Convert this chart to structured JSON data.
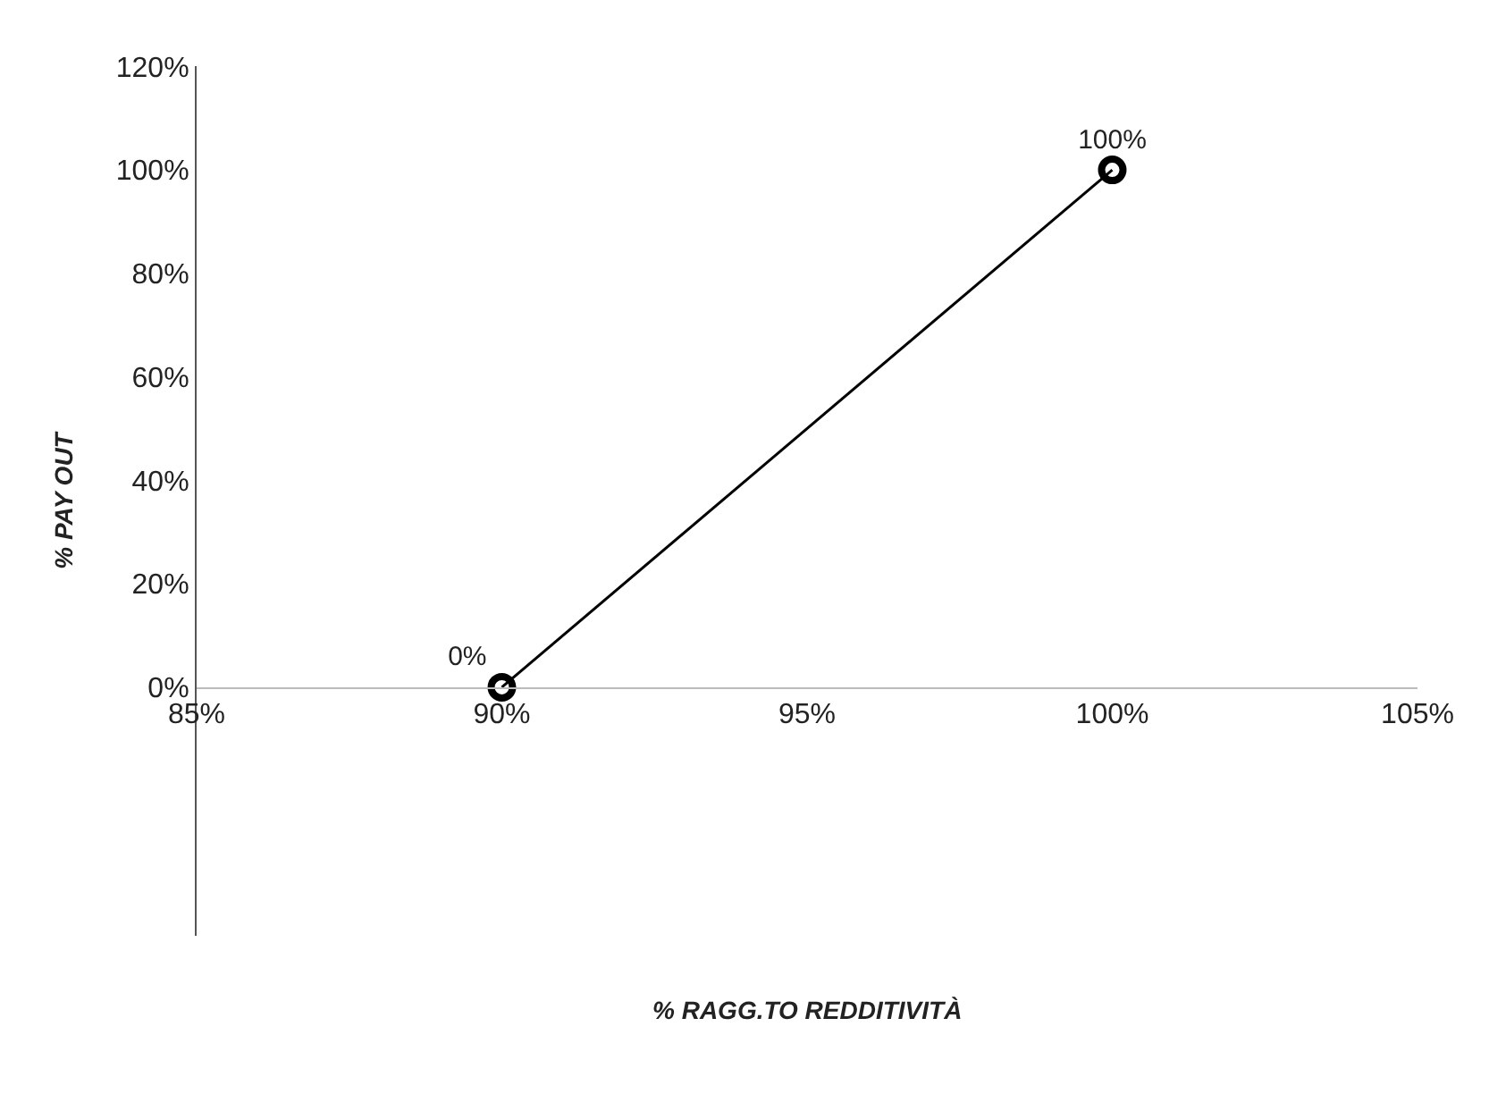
{
  "chart_data": {
    "type": "line",
    "xlabel": "% RAGG.TO REDDITIVITÀ",
    "ylabel": "% PAY OUT",
    "x": [
      90,
      100
    ],
    "series": [
      {
        "color": "#000000",
        "values": [
          0,
          100
        ],
        "value_labels": [
          "0%",
          "100%"
        ]
      }
    ],
    "marker": "circle",
    "line_style": "solid",
    "xlim": [
      85,
      105
    ],
    "xticks": [
      {
        "value": 85,
        "label": "85%"
      },
      {
        "value": 90,
        "label": "90%"
      },
      {
        "value": 95,
        "label": "95%"
      },
      {
        "value": 100,
        "label": "100%"
      },
      {
        "value": 105,
        "label": "105%"
      }
    ],
    "ylim": [
      -48,
      120
    ],
    "yticks": [
      {
        "value": 0,
        "label": "0%"
      },
      {
        "value": 20,
        "label": "20%"
      },
      {
        "value": 40,
        "label": "40%"
      },
      {
        "value": 60,
        "label": "60%"
      },
      {
        "value": 80,
        "label": "80%"
      },
      {
        "value": 100,
        "label": "100%"
      },
      {
        "value": 120,
        "label": "120%"
      }
    ]
  }
}
